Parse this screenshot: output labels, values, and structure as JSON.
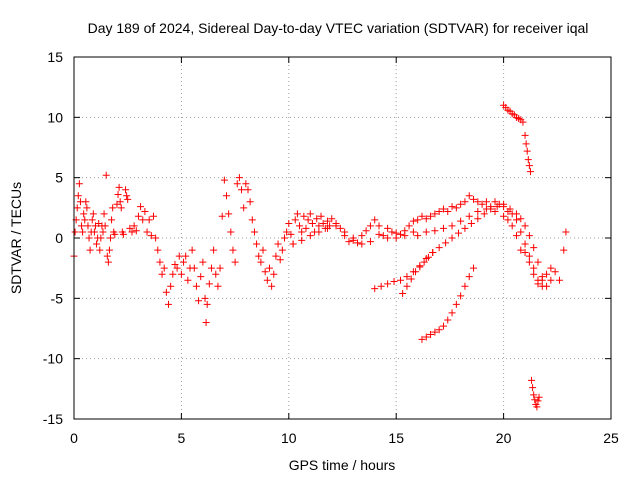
{
  "chart_data": {
    "type": "scatter",
    "title": "Day 189 of 2024, Sidereal Day-to-day VTEC variation (SDTVAR) for receiver iqal",
    "xlabel": "GPS time / hours",
    "ylabel": "SDTVAR / TECUs",
    "xlim": [
      0,
      25
    ],
    "ylim": [
      -15,
      15
    ],
    "xticks": [
      0,
      5,
      10,
      15,
      20,
      25
    ],
    "yticks": [
      -15,
      -10,
      -5,
      0,
      5,
      10,
      15
    ],
    "grid": true,
    "marker": "+",
    "series": [
      {
        "name": "SDTVAR",
        "color": "#ff0000",
        "points": [
          [
            0.0,
            -1.5
          ],
          [
            0.05,
            0.5
          ],
          [
            0.1,
            1.5
          ],
          [
            0.15,
            2.5
          ],
          [
            0.2,
            3.5
          ],
          [
            0.25,
            4.5
          ],
          [
            0.3,
            3.0
          ],
          [
            0.35,
            1.0
          ],
          [
            0.4,
            0.5
          ],
          [
            0.45,
            2.0
          ],
          [
            0.5,
            1.5
          ],
          [
            0.55,
            3.0
          ],
          [
            0.6,
            2.5
          ],
          [
            0.65,
            1.0
          ],
          [
            0.7,
            0.0
          ],
          [
            0.75,
            -1.0
          ],
          [
            0.8,
            0.5
          ],
          [
            0.85,
            1.5
          ],
          [
            0.9,
            2.0
          ],
          [
            0.95,
            0.5
          ],
          [
            1.0,
            1.0
          ],
          [
            1.05,
            -0.5
          ],
          [
            1.1,
            0.0
          ],
          [
            1.15,
            1.2
          ],
          [
            1.2,
            -1.0
          ],
          [
            1.25,
            0.0
          ],
          [
            1.3,
            1.0
          ],
          [
            1.35,
            0.5
          ],
          [
            1.4,
            2.0
          ],
          [
            1.45,
            1.0
          ],
          [
            1.5,
            5.2
          ],
          [
            1.55,
            -1.5
          ],
          [
            1.6,
            -2.0
          ],
          [
            1.65,
            -1.0
          ],
          [
            1.7,
            0.0
          ],
          [
            1.75,
            1.5
          ],
          [
            1.8,
            2.5
          ],
          [
            1.85,
            0.5
          ],
          [
            1.9,
            0.3
          ],
          [
            2.0,
            2.8
          ],
          [
            2.05,
            3.6
          ],
          [
            2.1,
            4.2
          ],
          [
            2.15,
            3.0
          ],
          [
            2.2,
            2.5
          ],
          [
            2.25,
            0.5
          ],
          [
            2.3,
            0.3
          ],
          [
            2.4,
            4.0
          ],
          [
            2.45,
            3.5
          ],
          [
            2.5,
            3.2
          ],
          [
            2.6,
            0.8
          ],
          [
            2.7,
            0.5
          ],
          [
            2.8,
            1.0
          ],
          [
            2.9,
            0.6
          ],
          [
            3.0,
            1.8
          ],
          [
            3.1,
            2.6
          ],
          [
            3.2,
            1.5
          ],
          [
            3.3,
            2.2
          ],
          [
            3.4,
            0.5
          ],
          [
            3.5,
            1.5
          ],
          [
            3.6,
            0.2
          ],
          [
            3.7,
            1.8
          ],
          [
            3.8,
            0.0
          ],
          [
            3.9,
            -1.0
          ],
          [
            4.0,
            -2.0
          ],
          [
            4.1,
            -3.0
          ],
          [
            4.2,
            -2.5
          ],
          [
            4.3,
            -4.5
          ],
          [
            4.4,
            -5.5
          ],
          [
            4.5,
            -4.0
          ],
          [
            4.6,
            -3.0
          ],
          [
            4.7,
            -2.2
          ],
          [
            4.8,
            -2.5
          ],
          [
            4.9,
            -1.5
          ],
          [
            5.0,
            -3.0
          ],
          [
            5.1,
            -2.0
          ],
          [
            5.2,
            -1.5
          ],
          [
            5.3,
            -3.5
          ],
          [
            5.4,
            -2.5
          ],
          [
            5.5,
            -1.0
          ],
          [
            5.6,
            -2.5
          ],
          [
            5.7,
            -4.0
          ],
          [
            5.8,
            -5.2
          ],
          [
            5.9,
            -3.2
          ],
          [
            6.0,
            -2.0
          ],
          [
            6.1,
            -5.0
          ],
          [
            6.15,
            -7.0
          ],
          [
            6.2,
            -5.5
          ],
          [
            6.3,
            -3.8
          ],
          [
            6.4,
            -2.5
          ],
          [
            6.5,
            -1.0
          ],
          [
            6.6,
            -3.0
          ],
          [
            6.7,
            -4.0
          ],
          [
            6.8,
            -2.5
          ],
          [
            6.9,
            1.8
          ],
          [
            7.0,
            4.8
          ],
          [
            7.1,
            3.5
          ],
          [
            7.2,
            2.0
          ],
          [
            7.3,
            0.5
          ],
          [
            7.4,
            -1.0
          ],
          [
            7.5,
            -2.0
          ],
          [
            7.6,
            4.5
          ],
          [
            7.7,
            5.0
          ],
          [
            7.8,
            4.0
          ],
          [
            7.9,
            2.5
          ],
          [
            8.0,
            4.5
          ],
          [
            8.1,
            4.0
          ],
          [
            8.2,
            3.0
          ],
          [
            8.3,
            1.5
          ],
          [
            8.4,
            0.5
          ],
          [
            8.5,
            -0.5
          ],
          [
            8.6,
            -1.5
          ],
          [
            8.7,
            -2.0
          ],
          [
            8.8,
            -1.0
          ],
          [
            8.9,
            -2.8
          ],
          [
            9.0,
            -3.5
          ],
          [
            9.1,
            -2.5
          ],
          [
            9.2,
            -4.0
          ],
          [
            9.3,
            -3.0
          ],
          [
            9.4,
            -1.5
          ],
          [
            9.5,
            -0.5
          ],
          [
            9.6,
            -1.8
          ],
          [
            9.7,
            -1.0
          ],
          [
            9.8,
            0.0
          ],
          [
            9.9,
            0.5
          ],
          [
            10.0,
            1.2
          ],
          [
            10.1,
            0.3
          ],
          [
            10.2,
            -0.5
          ],
          [
            10.3,
            1.5
          ],
          [
            10.4,
            2.0
          ],
          [
            10.5,
            1.0
          ],
          [
            10.6,
            0.5
          ],
          [
            10.7,
            1.8
          ],
          [
            10.8,
            0.8
          ],
          [
            10.9,
            1.5
          ],
          [
            11.0,
            2.0
          ],
          [
            11.1,
            1.2
          ],
          [
            11.2,
            0.5
          ],
          [
            11.3,
            1.6
          ],
          [
            11.4,
            1.0
          ],
          [
            11.5,
            1.8
          ],
          [
            11.6,
            1.2
          ],
          [
            11.7,
            0.8
          ],
          [
            11.8,
            1.4
          ],
          [
            11.9,
            1.0
          ],
          [
            12.0,
            1.6
          ],
          [
            12.2,
            1.2
          ],
          [
            12.4,
            0.8
          ],
          [
            12.6,
            0.2
          ],
          [
            12.8,
            -0.3
          ],
          [
            13.0,
            0.0
          ],
          [
            13.2,
            -0.4
          ],
          [
            13.4,
            0.2
          ],
          [
            13.6,
            0.6
          ],
          [
            13.8,
            1.0
          ],
          [
            14.0,
            1.5
          ],
          [
            14.2,
            1.0
          ],
          [
            14.4,
            0.2
          ],
          [
            14.6,
            0.0
          ],
          [
            14.8,
            0.5
          ],
          [
            15.0,
            0.0
          ],
          [
            15.2,
            0.3
          ],
          [
            15.4,
            0.6
          ],
          [
            15.6,
            1.0
          ],
          [
            15.8,
            1.4
          ],
          [
            16.0,
            1.5
          ],
          [
            16.2,
            1.8
          ],
          [
            16.4,
            1.6
          ],
          [
            16.6,
            1.8
          ],
          [
            16.8,
            2.0
          ],
          [
            17.0,
            2.2
          ],
          [
            17.2,
            2.4
          ],
          [
            17.4,
            2.2
          ],
          [
            17.6,
            2.6
          ],
          [
            17.8,
            2.5
          ],
          [
            18.0,
            2.8
          ],
          [
            18.2,
            3.0
          ],
          [
            18.4,
            3.5
          ],
          [
            18.6,
            3.2
          ],
          [
            18.8,
            3.0
          ],
          [
            19.0,
            2.8
          ],
          [
            19.2,
            3.0
          ],
          [
            19.4,
            2.6
          ],
          [
            19.6,
            3.0
          ],
          [
            19.8,
            2.8
          ],
          [
            20.0,
            2.6
          ],
          [
            20.2,
            2.2
          ],
          [
            20.4,
            2.0
          ],
          [
            20.6,
            1.5
          ],
          [
            20.8,
            0.5
          ],
          [
            21.0,
            -0.5
          ],
          [
            21.2,
            -1.5
          ],
          [
            21.4,
            -2.5
          ],
          [
            21.6,
            -3.5
          ],
          [
            21.8,
            -4.0
          ],
          [
            22.0,
            -3.0
          ],
          [
            22.2,
            -2.5
          ],
          [
            22.4,
            -2.8
          ],
          [
            22.6,
            -3.5
          ],
          [
            22.8,
            -1.0
          ],
          [
            22.9,
            0.5
          ],
          [
            10.2,
            -0.5
          ],
          [
            10.6,
            -0.2
          ],
          [
            11.0,
            0.2
          ],
          [
            11.4,
            0.5
          ],
          [
            11.8,
            0.8
          ],
          [
            12.2,
            1.0
          ],
          [
            12.6,
            0.5
          ],
          [
            13.0,
            -0.2
          ],
          [
            13.4,
            -0.5
          ],
          [
            13.8,
            -0.3
          ],
          [
            14.2,
            0.3
          ],
          [
            14.6,
            0.8
          ],
          [
            15.0,
            0.4
          ],
          [
            15.4,
            0.2
          ],
          [
            15.8,
            0.5
          ],
          [
            16.0,
            0.2
          ],
          [
            16.4,
            0.5
          ],
          [
            16.8,
            0.6
          ],
          [
            17.2,
            0.8
          ],
          [
            17.6,
            1.0
          ],
          [
            18.0,
            1.4
          ],
          [
            18.4,
            1.8
          ],
          [
            18.8,
            2.2
          ],
          [
            19.2,
            2.4
          ],
          [
            19.6,
            2.2
          ],
          [
            20.0,
            1.8
          ],
          [
            20.2,
            1.5
          ],
          [
            20.4,
            1.0
          ],
          [
            20.6,
            0.2
          ],
          [
            20.8,
            -1.0
          ],
          [
            21.0,
            -1.2
          ],
          [
            21.2,
            -2.0
          ],
          [
            21.4,
            -3.0
          ],
          [
            21.6,
            -3.8
          ],
          [
            21.8,
            -3.5
          ],
          [
            14.0,
            -4.2
          ],
          [
            14.3,
            -4.0
          ],
          [
            14.6,
            -3.8
          ],
          [
            14.9,
            -3.6
          ],
          [
            15.2,
            -3.5
          ],
          [
            15.5,
            -3.2
          ],
          [
            15.8,
            -2.8
          ],
          [
            16.1,
            -2.3
          ],
          [
            16.4,
            -1.7
          ],
          [
            16.7,
            -1.2
          ],
          [
            17.0,
            -0.8
          ],
          [
            17.3,
            -0.4
          ],
          [
            17.6,
            0.0
          ],
          [
            17.9,
            0.4
          ],
          [
            18.2,
            0.8
          ],
          [
            18.5,
            1.2
          ],
          [
            18.8,
            1.6
          ],
          [
            19.1,
            2.0
          ],
          [
            19.4,
            2.4
          ],
          [
            19.7,
            2.6
          ],
          [
            20.0,
            2.8
          ],
          [
            20.3,
            2.4
          ],
          [
            20.6,
            2.0
          ],
          [
            20.8,
            1.6
          ],
          [
            21.0,
            1.0
          ],
          [
            21.2,
            0.2
          ],
          [
            21.4,
            -0.8
          ],
          [
            21.6,
            -2.0
          ],
          [
            21.8,
            -3.2
          ],
          [
            22.0,
            -4.0
          ],
          [
            22.2,
            -3.5
          ],
          [
            15.3,
            -4.6
          ],
          [
            15.5,
            -4.0
          ],
          [
            15.7,
            -3.4
          ],
          [
            15.9,
            -2.8
          ],
          [
            16.1,
            -2.4
          ],
          [
            16.3,
            -2.0
          ],
          [
            16.5,
            -1.6
          ],
          [
            16.7,
            -1.2
          ],
          [
            16.2,
            -8.4
          ],
          [
            16.4,
            -8.2
          ],
          [
            16.6,
            -8.0
          ],
          [
            16.8,
            -7.8
          ],
          [
            17.0,
            -7.6
          ],
          [
            17.2,
            -7.3
          ],
          [
            17.4,
            -6.8
          ],
          [
            17.6,
            -6.2
          ],
          [
            17.8,
            -5.5
          ],
          [
            18.0,
            -4.8
          ],
          [
            18.2,
            -4.0
          ],
          [
            18.4,
            -3.2
          ],
          [
            18.6,
            -2.5
          ],
          [
            20.0,
            11.0
          ],
          [
            20.1,
            10.8
          ],
          [
            20.2,
            10.6
          ],
          [
            20.3,
            10.5
          ],
          [
            20.4,
            10.3
          ],
          [
            20.5,
            10.2
          ],
          [
            20.6,
            10.0
          ],
          [
            20.7,
            9.9
          ],
          [
            20.8,
            9.8
          ],
          [
            20.9,
            9.6
          ],
          [
            21.0,
            8.5
          ],
          [
            21.05,
            7.8
          ],
          [
            21.1,
            7.2
          ],
          [
            21.15,
            6.5
          ],
          [
            21.2,
            6.0
          ],
          [
            21.25,
            5.5
          ],
          [
            21.3,
            -11.8
          ],
          [
            21.35,
            -12.4
          ],
          [
            21.4,
            -13.0
          ],
          [
            21.45,
            -13.4
          ],
          [
            21.5,
            -13.8
          ],
          [
            21.55,
            -14.0
          ],
          [
            21.6,
            -13.5
          ],
          [
            21.65,
            -13.2
          ]
        ]
      }
    ]
  }
}
